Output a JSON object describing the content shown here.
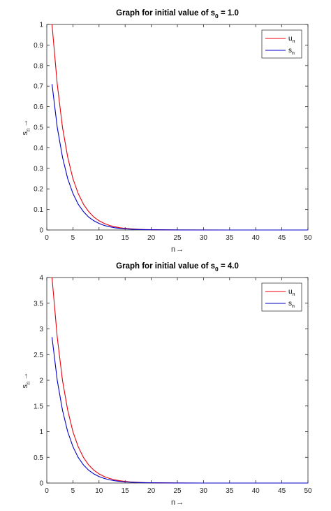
{
  "chart_data": [
    {
      "type": "line",
      "title": "Graph for initial value of s",
      "title_sub": "0",
      "title_suffix": " = 1.0",
      "xlabel": "n",
      "xlabel_arrow": "→",
      "ylabel": "s",
      "ylabel_sub": "n",
      "ylabel_arrow": "→",
      "xlim": [
        0,
        50
      ],
      "ylim": [
        0,
        1
      ],
      "x_ticks": [
        "0",
        "5",
        "10",
        "15",
        "20",
        "25",
        "30",
        "35",
        "40",
        "45",
        "50"
      ],
      "y_ticks": [
        "0",
        "0.1",
        "0.2",
        "0.3",
        "0.4",
        "0.5",
        "0.6",
        "0.7",
        "0.8",
        "0.9",
        "1"
      ],
      "legend_position": "top-right",
      "series": [
        {
          "name": "u",
          "name_sub": "n",
          "color": "#e8000b",
          "x": [
            1,
            2,
            3,
            4,
            5,
            6,
            7,
            8,
            9,
            10,
            11,
            12,
            13,
            14,
            15,
            16,
            17,
            18,
            19,
            20,
            25,
            30,
            35,
            40,
            45,
            50
          ],
          "values": [
            1.0,
            0.71,
            0.5,
            0.355,
            0.25,
            0.178,
            0.126,
            0.09,
            0.063,
            0.045,
            0.032,
            0.022,
            0.016,
            0.011,
            0.008,
            0.0057,
            0.004,
            0.0028,
            0.002,
            0.0014,
            0.0003,
            0.0001,
            0.0,
            0.0,
            0.0,
            0.0
          ]
        },
        {
          "name": "s",
          "name_sub": "n",
          "color": "#0000c8",
          "x": [
            1,
            2,
            3,
            4,
            5,
            6,
            7,
            8,
            9,
            10,
            11,
            12,
            13,
            14,
            15,
            16,
            17,
            18,
            19,
            20,
            25,
            30,
            35,
            40,
            45,
            50
          ],
          "values": [
            0.71,
            0.5,
            0.355,
            0.25,
            0.178,
            0.126,
            0.09,
            0.063,
            0.045,
            0.032,
            0.022,
            0.016,
            0.011,
            0.008,
            0.0057,
            0.004,
            0.0028,
            0.002,
            0.0014,
            0.001,
            0.0002,
            0.0,
            0.0,
            0.0,
            0.0,
            0.0
          ]
        }
      ]
    },
    {
      "type": "line",
      "title": "Graph for initial value of s",
      "title_sub": "0",
      "title_suffix": " = 4.0",
      "xlabel": "n",
      "xlabel_arrow": "→",
      "ylabel": "s",
      "ylabel_sub": "n",
      "ylabel_arrow": "→",
      "xlim": [
        0,
        50
      ],
      "ylim": [
        0,
        4
      ],
      "x_ticks": [
        "0",
        "5",
        "10",
        "15",
        "20",
        "25",
        "30",
        "35",
        "40",
        "45",
        "50"
      ],
      "y_ticks": [
        "0",
        "0.5",
        "1",
        "1.5",
        "2",
        "2.5",
        "3",
        "3.5",
        "4"
      ],
      "legend_position": "top-right",
      "series": [
        {
          "name": "u",
          "name_sub": "n",
          "color": "#e8000b",
          "x": [
            1,
            2,
            3,
            4,
            5,
            6,
            7,
            8,
            9,
            10,
            11,
            12,
            13,
            14,
            15,
            16,
            17,
            18,
            19,
            20,
            25,
            30,
            35,
            40,
            45,
            50
          ],
          "values": [
            4.0,
            2.84,
            2.0,
            1.42,
            1.0,
            0.71,
            0.5,
            0.355,
            0.25,
            0.178,
            0.126,
            0.09,
            0.063,
            0.045,
            0.032,
            0.022,
            0.016,
            0.011,
            0.008,
            0.0057,
            0.001,
            0.0002,
            0.0,
            0.0,
            0.0,
            0.0
          ]
        },
        {
          "name": "s",
          "name_sub": "n",
          "color": "#0000c8",
          "x": [
            1,
            2,
            3,
            4,
            5,
            6,
            7,
            8,
            9,
            10,
            11,
            12,
            13,
            14,
            15,
            16,
            17,
            18,
            19,
            20,
            25,
            30,
            35,
            40,
            45,
            50
          ],
          "values": [
            2.84,
            2.0,
            1.42,
            1.0,
            0.71,
            0.5,
            0.355,
            0.25,
            0.178,
            0.126,
            0.09,
            0.063,
            0.045,
            0.032,
            0.022,
            0.016,
            0.011,
            0.008,
            0.0057,
            0.004,
            0.0007,
            0.0001,
            0.0,
            0.0,
            0.0,
            0.0
          ]
        }
      ]
    }
  ]
}
